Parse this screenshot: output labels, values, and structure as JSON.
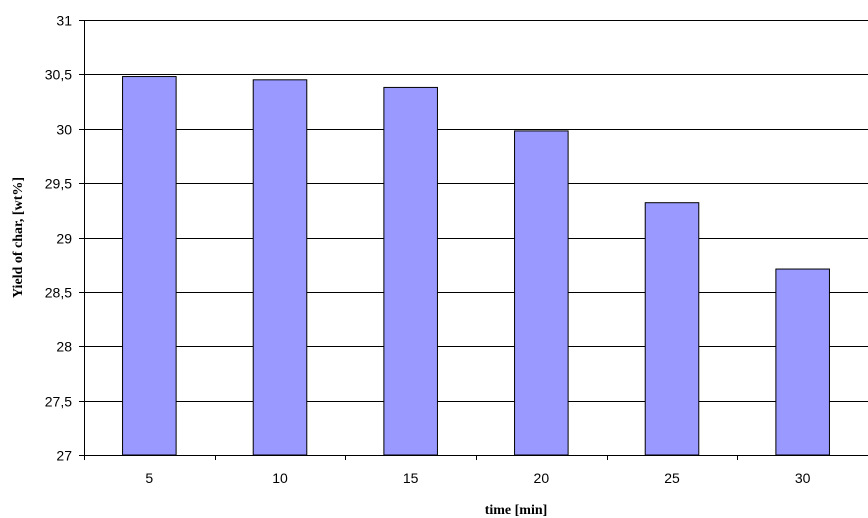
{
  "chart_data": {
    "type": "bar",
    "title": "",
    "xlabel": "time [min]",
    "ylabel": "Yield of char, [wt%]",
    "categories": [
      "5",
      "10",
      "15",
      "20",
      "25",
      "30"
    ],
    "values": [
      30.48,
      30.45,
      30.38,
      29.98,
      29.32,
      28.71
    ],
    "ylim": [
      27,
      31
    ],
    "yticks": [
      27,
      27.5,
      28,
      28.5,
      29,
      29.5,
      30,
      30.5,
      31
    ],
    "ytick_labels": [
      "27",
      "27,5",
      "28",
      "28,5",
      "29",
      "29,5",
      "30",
      "30,5",
      "31"
    ],
    "grid": true,
    "legend": "none",
    "bar_color": "#9999ff"
  }
}
